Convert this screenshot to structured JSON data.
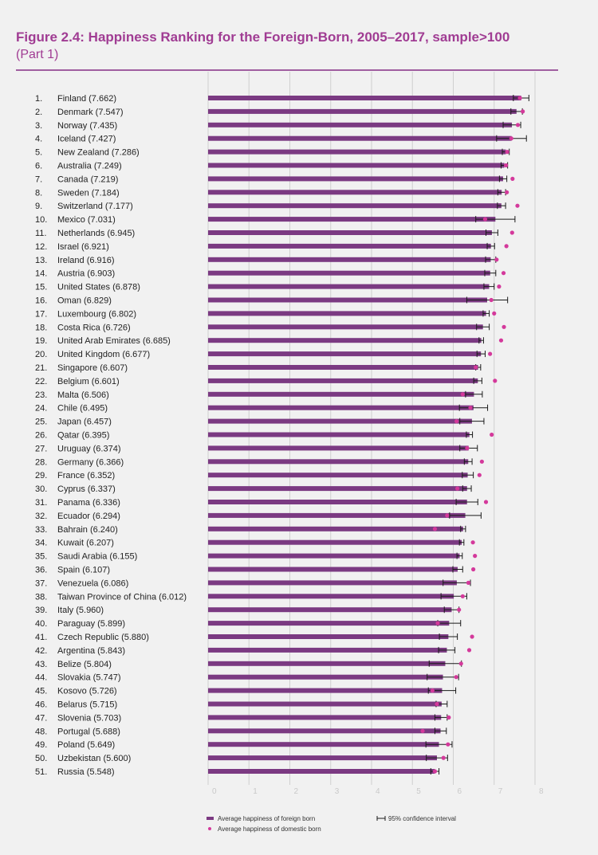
{
  "header": {
    "title": "Figure 2.4: Happiness Ranking for the Foreign-Born, 2005–2017, sample>100",
    "subtitle": "(Part 1)"
  },
  "colors": {
    "bar": "#7b3a82",
    "dot": "#d4399b",
    "title": "#a03c93",
    "grid": "#d0d0d0"
  },
  "chart_data": {
    "type": "bar",
    "orientation": "horizontal",
    "xlim": [
      0,
      8
    ],
    "x_ticks": [
      "0",
      "1",
      "2",
      "3",
      "4",
      "5",
      "6",
      "7",
      "8"
    ],
    "grid": true,
    "legend": {
      "position": "bottom",
      "items": [
        {
          "label": "Average happiness of foreign born",
          "marker": "bar"
        },
        {
          "label": "95% confidence interval",
          "marker": "errorbar"
        },
        {
          "label": "Average happiness of domestic born",
          "marker": "dot"
        }
      ]
    },
    "series": [
      {
        "name": "Average happiness of foreign born"
      },
      {
        "name": "Average happiness of domestic born"
      }
    ],
    "rows": [
      {
        "rank": "1.",
        "label": "Finland (7.662)",
        "value": 7.662,
        "ci": [
          7.47,
          7.85
        ],
        "domestic": 7.63
      },
      {
        "rank": "2.",
        "label": "Denmark (7.547)",
        "value": 7.547,
        "ci": [
          7.41,
          7.69
        ],
        "domestic": 7.7
      },
      {
        "rank": "3.",
        "label": "Norway (7.435)",
        "value": 7.435,
        "ci": [
          7.22,
          7.65
        ],
        "domestic": 7.58
      },
      {
        "rank": "4.",
        "label": "Iceland (7.427)",
        "value": 7.427,
        "ci": [
          7.06,
          7.79
        ],
        "domestic": 7.42
      },
      {
        "rank": "5.",
        "label": "New Zealand (7.286)",
        "value": 7.286,
        "ci": [
          7.2,
          7.37
        ],
        "domestic": 7.32
      },
      {
        "rank": "6.",
        "label": "Australia (7.249)",
        "value": 7.249,
        "ci": [
          7.17,
          7.33
        ],
        "domestic": 7.29
      },
      {
        "rank": "7.",
        "label": "Canada (7.219)",
        "value": 7.219,
        "ci": [
          7.13,
          7.31
        ],
        "domestic": 7.45
      },
      {
        "rank": "8.",
        "label": "Sweden (7.184)",
        "value": 7.184,
        "ci": [
          7.09,
          7.28
        ],
        "domestic": 7.31
      },
      {
        "rank": "9.",
        "label": "Switzerland (7.177)",
        "value": 7.177,
        "ci": [
          7.08,
          7.28
        ],
        "domestic": 7.57
      },
      {
        "rank": "10.",
        "label": "Mexico (7.031)",
        "value": 7.031,
        "ci": [
          6.55,
          7.51
        ],
        "domestic": 6.78
      },
      {
        "rank": "11.",
        "label": "Netherlands (6.945)",
        "value": 6.945,
        "ci": [
          6.8,
          7.09
        ],
        "domestic": 7.44
      },
      {
        "rank": "12.",
        "label": "Israel (6.921)",
        "value": 6.921,
        "ci": [
          6.83,
          7.01
        ],
        "domestic": 7.3
      },
      {
        "rank": "13.",
        "label": "Ireland (6.916)",
        "value": 6.916,
        "ci": [
          6.79,
          7.04
        ],
        "domestic": 7.06
      },
      {
        "rank": "14.",
        "label": "Austria (6.903)",
        "value": 6.903,
        "ci": [
          6.77,
          7.04
        ],
        "domestic": 7.23
      },
      {
        "rank": "15.",
        "label": "United States (6.878)",
        "value": 6.878,
        "ci": [
          6.75,
          7.0
        ],
        "domestic": 7.12
      },
      {
        "rank": "16.",
        "label": "Oman (6.829)",
        "value": 6.829,
        "ci": [
          6.33,
          7.33
        ],
        "domestic": 6.93
      },
      {
        "rank": "17.",
        "label": "Luxembourg (6.802)",
        "value": 6.802,
        "ci": [
          6.73,
          6.88
        ],
        "domestic": 7.0
      },
      {
        "rank": "18.",
        "label": "Costa Rica (6.726)",
        "value": 6.726,
        "ci": [
          6.57,
          6.88
        ],
        "domestic": 7.24
      },
      {
        "rank": "19.",
        "label": "United Arab Emirates (6.685)",
        "value": 6.685,
        "ci": [
          6.63,
          6.74
        ],
        "domestic": 7.17
      },
      {
        "rank": "20.",
        "label": "United Kingdom (6.677)",
        "value": 6.677,
        "ci": [
          6.58,
          6.78
        ],
        "domestic": 6.9
      },
      {
        "rank": "21.",
        "label": "Singapore (6.607)",
        "value": 6.607,
        "ci": [
          6.55,
          6.67
        ],
        "domestic": 6.55
      },
      {
        "rank": "22.",
        "label": "Belgium (6.601)",
        "value": 6.601,
        "ci": [
          6.5,
          6.7
        ],
        "domestic": 7.02
      },
      {
        "rank": "23.",
        "label": "Malta (6.506)",
        "value": 6.506,
        "ci": [
          6.3,
          6.71
        ],
        "domestic": 6.23
      },
      {
        "rank": "24.",
        "label": "Chile (6.495)",
        "value": 6.495,
        "ci": [
          6.15,
          6.84
        ],
        "domestic": 6.42
      },
      {
        "rank": "25.",
        "label": "Japan (6.457)",
        "value": 6.457,
        "ci": [
          6.16,
          6.75
        ],
        "domestic": 6.08
      },
      {
        "rank": "26.",
        "label": "Qatar (6.395)",
        "value": 6.395,
        "ci": [
          6.32,
          6.47
        ],
        "domestic": 6.94
      },
      {
        "rank": "27.",
        "label": "Uruguay (6.374)",
        "value": 6.374,
        "ci": [
          6.16,
          6.59
        ],
        "domestic": 6.34
      },
      {
        "rank": "28.",
        "label": "Germany (6.366)",
        "value": 6.366,
        "ci": [
          6.27,
          6.46
        ],
        "domestic": 6.7
      },
      {
        "rank": "29.",
        "label": "France (6.352)",
        "value": 6.352,
        "ci": [
          6.22,
          6.49
        ],
        "domestic": 6.64
      },
      {
        "rank": "30.",
        "label": "Cyprus (6.337)",
        "value": 6.337,
        "ci": [
          6.23,
          6.44
        ],
        "domestic": 6.1
      },
      {
        "rank": "31.",
        "label": "Panama (6.336)",
        "value": 6.336,
        "ci": [
          6.07,
          6.6
        ],
        "domestic": 6.8
      },
      {
        "rank": "32.",
        "label": "Ecuador (6.294)",
        "value": 6.294,
        "ci": [
          5.91,
          6.68
        ],
        "domestic": 5.85
      },
      {
        "rank": "33.",
        "label": "Bahrain (6.240)",
        "value": 6.24,
        "ci": [
          6.18,
          6.3
        ],
        "domestic": 5.55
      },
      {
        "rank": "34.",
        "label": "Kuwait (6.207)",
        "value": 6.207,
        "ci": [
          6.15,
          6.26
        ],
        "domestic": 6.48
      },
      {
        "rank": "35.",
        "label": "Saudi Arabia (6.155)",
        "value": 6.155,
        "ci": [
          6.09,
          6.22
        ],
        "domestic": 6.53
      },
      {
        "rank": "36.",
        "label": "Spain (6.107)",
        "value": 6.107,
        "ci": [
          5.99,
          6.23
        ],
        "domestic": 6.49
      },
      {
        "rank": "37.",
        "label": "Venezuela (6.086)",
        "value": 6.086,
        "ci": [
          5.75,
          6.42
        ],
        "domestic": 6.37
      },
      {
        "rank": "38.",
        "label": "Taiwan Province of China (6.012)",
        "value": 6.012,
        "ci": [
          5.7,
          6.33
        ],
        "domestic": 6.23
      },
      {
        "rank": "39.",
        "label": "Italy (5.960)",
        "value": 5.96,
        "ci": [
          5.78,
          6.14
        ],
        "domestic": 6.14
      },
      {
        "rank": "40.",
        "label": "Paraguay (5.899)",
        "value": 5.899,
        "ci": [
          5.62,
          6.18
        ],
        "domestic": 5.62
      },
      {
        "rank": "41.",
        "label": "Czech Republic (5.880)",
        "value": 5.88,
        "ci": [
          5.66,
          6.1
        ],
        "domestic": 6.46
      },
      {
        "rank": "42.",
        "label": "Argentina (5.843)",
        "value": 5.843,
        "ci": [
          5.64,
          6.04
        ],
        "domestic": 6.39
      },
      {
        "rank": "43.",
        "label": "Belize (5.804)",
        "value": 5.804,
        "ci": [
          5.41,
          6.2
        ],
        "domestic": 6.19
      },
      {
        "rank": "44.",
        "label": "Slovakia (5.747)",
        "value": 5.747,
        "ci": [
          5.36,
          6.13
        ],
        "domestic": 6.07
      },
      {
        "rank": "45.",
        "label": "Kosovo (5.726)",
        "value": 5.726,
        "ci": [
          5.39,
          6.06
        ],
        "domestic": 5.49
      },
      {
        "rank": "46.",
        "label": "Belarus (5.715)",
        "value": 5.715,
        "ci": [
          5.58,
          5.85
        ],
        "domestic": 5.6
      },
      {
        "rank": "47.",
        "label": "Slovenia (5.703)",
        "value": 5.703,
        "ci": [
          5.55,
          5.85
        ],
        "domestic": 5.89
      },
      {
        "rank": "48.",
        "label": "Portugal (5.688)",
        "value": 5.688,
        "ci": [
          5.55,
          5.83
        ],
        "domestic": 5.25
      },
      {
        "rank": "49.",
        "label": "Poland (5.649)",
        "value": 5.649,
        "ci": [
          5.33,
          5.97
        ],
        "domestic": 5.87
      },
      {
        "rank": "50.",
        "label": "Uzbekistan (5.600)",
        "value": 5.6,
        "ci": [
          5.34,
          5.86
        ],
        "domestic": 5.76
      },
      {
        "rank": "51.",
        "label": "Russia (5.548)",
        "value": 5.548,
        "ci": [
          5.45,
          5.65
        ],
        "domestic": 5.55
      }
    ]
  }
}
